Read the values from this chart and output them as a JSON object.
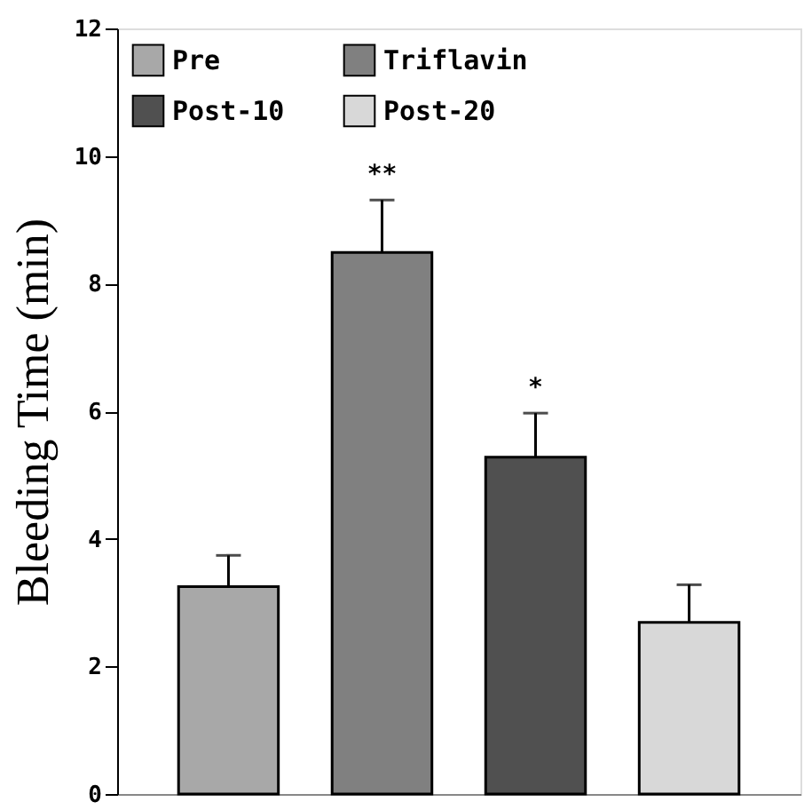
{
  "chart_data": {
    "type": "bar",
    "ylabel": "Bleeding Time (min)",
    "categories": [
      null,
      null,
      null,
      null
    ],
    "series": [
      {
        "name": "Pre",
        "color": "#a8a8a8",
        "values": [
          3.25,
          null,
          null,
          null
        ],
        "errors": [
          0.49,
          null,
          null,
          null
        ]
      },
      {
        "name": "Triflavin",
        "color": "#808080",
        "values": [
          null,
          8.49,
          null,
          null
        ],
        "errors": [
          null,
          0.82,
          null,
          null
        ]
      },
      {
        "name": "Post-10",
        "color": "#505050",
        "values": [
          null,
          null,
          5.28,
          null
        ],
        "errors": [
          null,
          null,
          0.69,
          null
        ]
      },
      {
        "name": "Post-20",
        "color": "#d8d8d8",
        "values": [
          null,
          null,
          null,
          2.69
        ],
        "errors": [
          null,
          null,
          null,
          0.59
        ]
      }
    ],
    "annotations": [
      "**",
      "*"
    ],
    "ylim": [
      0,
      12
    ],
    "yticks": [
      0,
      2,
      4,
      6,
      8,
      10,
      12
    ],
    "grid": false,
    "legend": "top left",
    "tick_labels": "y"
  }
}
